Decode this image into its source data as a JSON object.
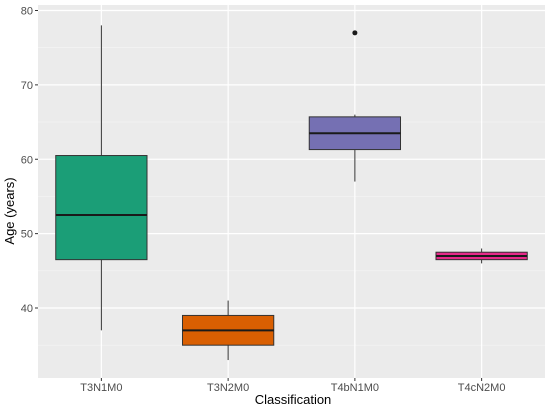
{
  "chart_data": {
    "type": "boxplot",
    "title": "",
    "xlabel": "Classification",
    "ylabel": "Age (years)",
    "ylim": [
      30,
      80
    ],
    "y_ticks": [
      40,
      50,
      60,
      70,
      80
    ],
    "grid": true,
    "legend": "none",
    "categories": [
      "T3N1M0",
      "T3N2M0",
      "T4bN1M0",
      "T4cN2M0"
    ],
    "colors": {
      "T3N1M0": "#1b9e77",
      "T3N2M0": "#d95f02",
      "T4bN1M0": "#7570b3",
      "T4cN2M0": "#e7298a"
    },
    "boxes": [
      {
        "category": "T3N1M0",
        "whisker_low": 37,
        "q1": 46.5,
        "median": 52.5,
        "q3": 60.5,
        "whisker_high": 78,
        "outliers": []
      },
      {
        "category": "T3N2M0",
        "whisker_low": 33,
        "q1": 35,
        "median": 37,
        "q3": 39,
        "whisker_high": 41,
        "outliers": []
      },
      {
        "category": "T4bN1M0",
        "whisker_low": 57,
        "q1": 61.3,
        "median": 63.5,
        "q3": 65.7,
        "whisker_high": 66,
        "outliers": [
          77
        ]
      },
      {
        "category": "T4cN2M0",
        "whisker_low": 46,
        "q1": 46.5,
        "median": 47,
        "q3": 47.5,
        "whisker_high": 48,
        "outliers": []
      }
    ]
  }
}
